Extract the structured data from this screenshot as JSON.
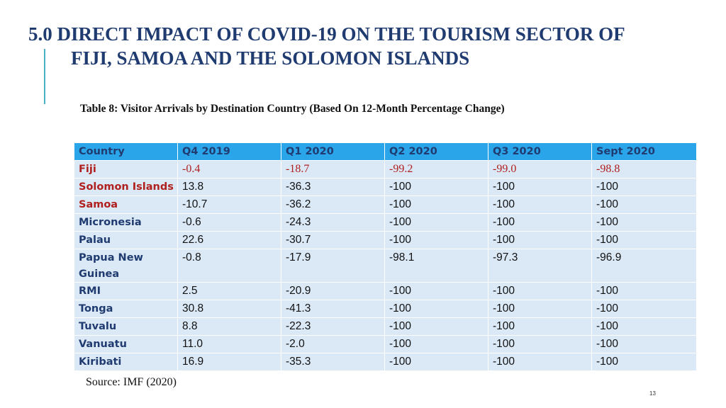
{
  "slide": {
    "title_line1": "5.0 DIRECT IMPACT OF COVID-19 ON THE TOURISM SECTOR OF",
    "title_line2": "FIJI, SAMOA AND THE SOLOMON ISLANDS",
    "accent_color": "#4bb3c6",
    "title_color": "#1f3b70"
  },
  "table": {
    "caption": "Table 8: Visitor Arrivals by Destination Country (Based On 12-Month Percentage Change)",
    "header_color": "#2ba5ea",
    "row_color": "#dbe9f7",
    "headers": [
      "Country",
      "Q4 2019",
      "Q1 2020",
      "Q2 2020",
      "Q3 2020",
      "Sept 2020"
    ],
    "rows": [
      [
        "Fiji",
        "-0.4",
        "-18.7",
        "-99.2",
        "-99.0",
        "-98.8"
      ],
      [
        "Solomon Islands",
        "13.8",
        "-36.3",
        "-100",
        "-100",
        "-100"
      ],
      [
        "Samoa",
        "-10.7",
        "-36.2",
        "-100",
        "-100",
        "-100"
      ],
      [
        "Micronesia",
        "-0.6",
        "-24.3",
        "-100",
        "-100",
        "-100"
      ],
      [
        "Palau",
        "22.6",
        "-30.7",
        "-100",
        "-100",
        "-100"
      ],
      [
        "Papua New Guinea",
        "-0.8",
        "-17.9",
        "-98.1",
        "-97.3",
        "-96.9"
      ],
      [
        "RMI",
        "2.5",
        "-20.9",
        "-100",
        "-100",
        "-100"
      ],
      [
        "Tonga",
        "30.8",
        "-41.3",
        "-100",
        "-100",
        "-100"
      ],
      [
        "Tuvalu",
        "8.8",
        "-22.3",
        "-100",
        "-100",
        "-100"
      ],
      [
        "Vanuatu",
        "11.0",
        "-2.0",
        "-100",
        "-100",
        "-100"
      ],
      [
        "Kiribati",
        "16.9",
        "-35.3",
        "-100",
        "-100",
        "-100"
      ]
    ]
  },
  "source": "Source: IMF (2020)",
  "page_number": "13"
}
